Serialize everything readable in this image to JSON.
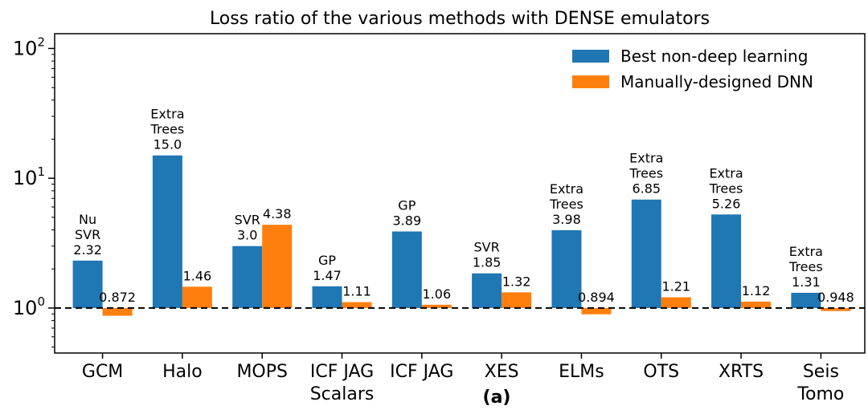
{
  "chart_data": {
    "type": "bar",
    "title": "Loss ratio of the various methods with DENSE emulators",
    "subtitle_label": "(a)",
    "yscale": "log",
    "ylim": [
      0.45,
      130
    ],
    "yticks": [
      {
        "value": 1,
        "base": "10",
        "exp": "0"
      },
      {
        "value": 10,
        "base": "10",
        "exp": "1"
      },
      {
        "value": 100,
        "base": "10",
        "exp": "2"
      }
    ],
    "reference_line": {
      "value": 1,
      "style": "dashed"
    },
    "categories": [
      [
        "GCM"
      ],
      [
        "Halo"
      ],
      [
        "MOPS"
      ],
      [
        "ICF JAG",
        "Scalars"
      ],
      [
        "ICF JAG"
      ],
      [
        "XES"
      ],
      [
        "ELMs"
      ],
      [
        "OTS"
      ],
      [
        "XRTS"
      ],
      [
        "Seis",
        "Tomo"
      ]
    ],
    "legend_position": "top-right",
    "series": [
      {
        "name": "Best non-deep learning",
        "color": "#1f77b4",
        "values": [
          2.32,
          15.0,
          3.0,
          1.47,
          3.89,
          1.85,
          3.98,
          6.85,
          5.26,
          1.31
        ],
        "labels": [
          [
            "Nu",
            "SVR",
            "2.32"
          ],
          [
            "Extra",
            "Trees",
            "15.0"
          ],
          [
            "SVR",
            "3.0"
          ],
          [
            "GP",
            "1.47"
          ],
          [
            "GP",
            "3.89"
          ],
          [
            "SVR",
            "1.85"
          ],
          [
            "Extra",
            "Trees",
            "3.98"
          ],
          [
            "Extra",
            "Trees",
            "6.85"
          ],
          [
            "Extra",
            "Trees",
            "5.26"
          ],
          [
            "Extra",
            "Trees",
            "1.31"
          ]
        ]
      },
      {
        "name": "Manually-designed DNN",
        "color": "#ff7f0e",
        "values": [
          0.872,
          1.46,
          4.38,
          1.11,
          1.06,
          1.32,
          0.894,
          1.21,
          1.12,
          0.948
        ],
        "labels": [
          [
            "0.872"
          ],
          [
            "1.46"
          ],
          [
            "4.38"
          ],
          [
            "1.11"
          ],
          [
            "1.06"
          ],
          [
            "1.32"
          ],
          [
            "0.894"
          ],
          [
            "1.21"
          ],
          [
            "1.12"
          ],
          [
            "0.948"
          ]
        ]
      }
    ]
  }
}
